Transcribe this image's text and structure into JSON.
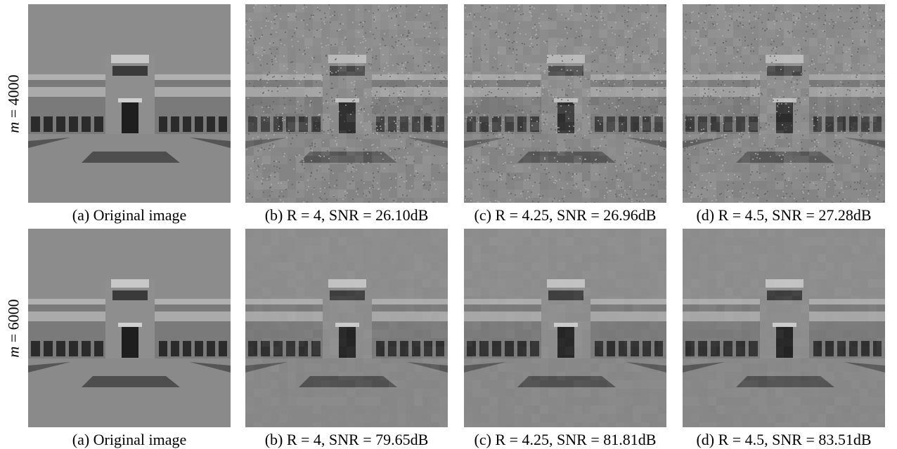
{
  "figure": {
    "rows": [
      {
        "label": "m = 4000",
        "panels": [
          {
            "caption": "(a) Original image",
            "kind": "original"
          },
          {
            "caption": "(b) R = 4, SNR = 26.10dB",
            "kind": "noisy"
          },
          {
            "caption": "(c) R = 4.25, SNR = 26.96dB",
            "kind": "noisy"
          },
          {
            "caption": "(d) R = 4.5, SNR = 27.28dB",
            "kind": "noisy"
          }
        ]
      },
      {
        "label": "m = 6000",
        "panels": [
          {
            "caption": "(a) Original image",
            "kind": "original"
          },
          {
            "caption": "(b) R = 4, SNR = 79.65dB",
            "kind": "clean"
          },
          {
            "caption": "(c) R = 4.25, SNR = 81.81dB",
            "kind": "clean"
          },
          {
            "caption": "(d) R = 4.5, SNR = 83.51dB",
            "kind": "clean"
          }
        ]
      }
    ]
  }
}
